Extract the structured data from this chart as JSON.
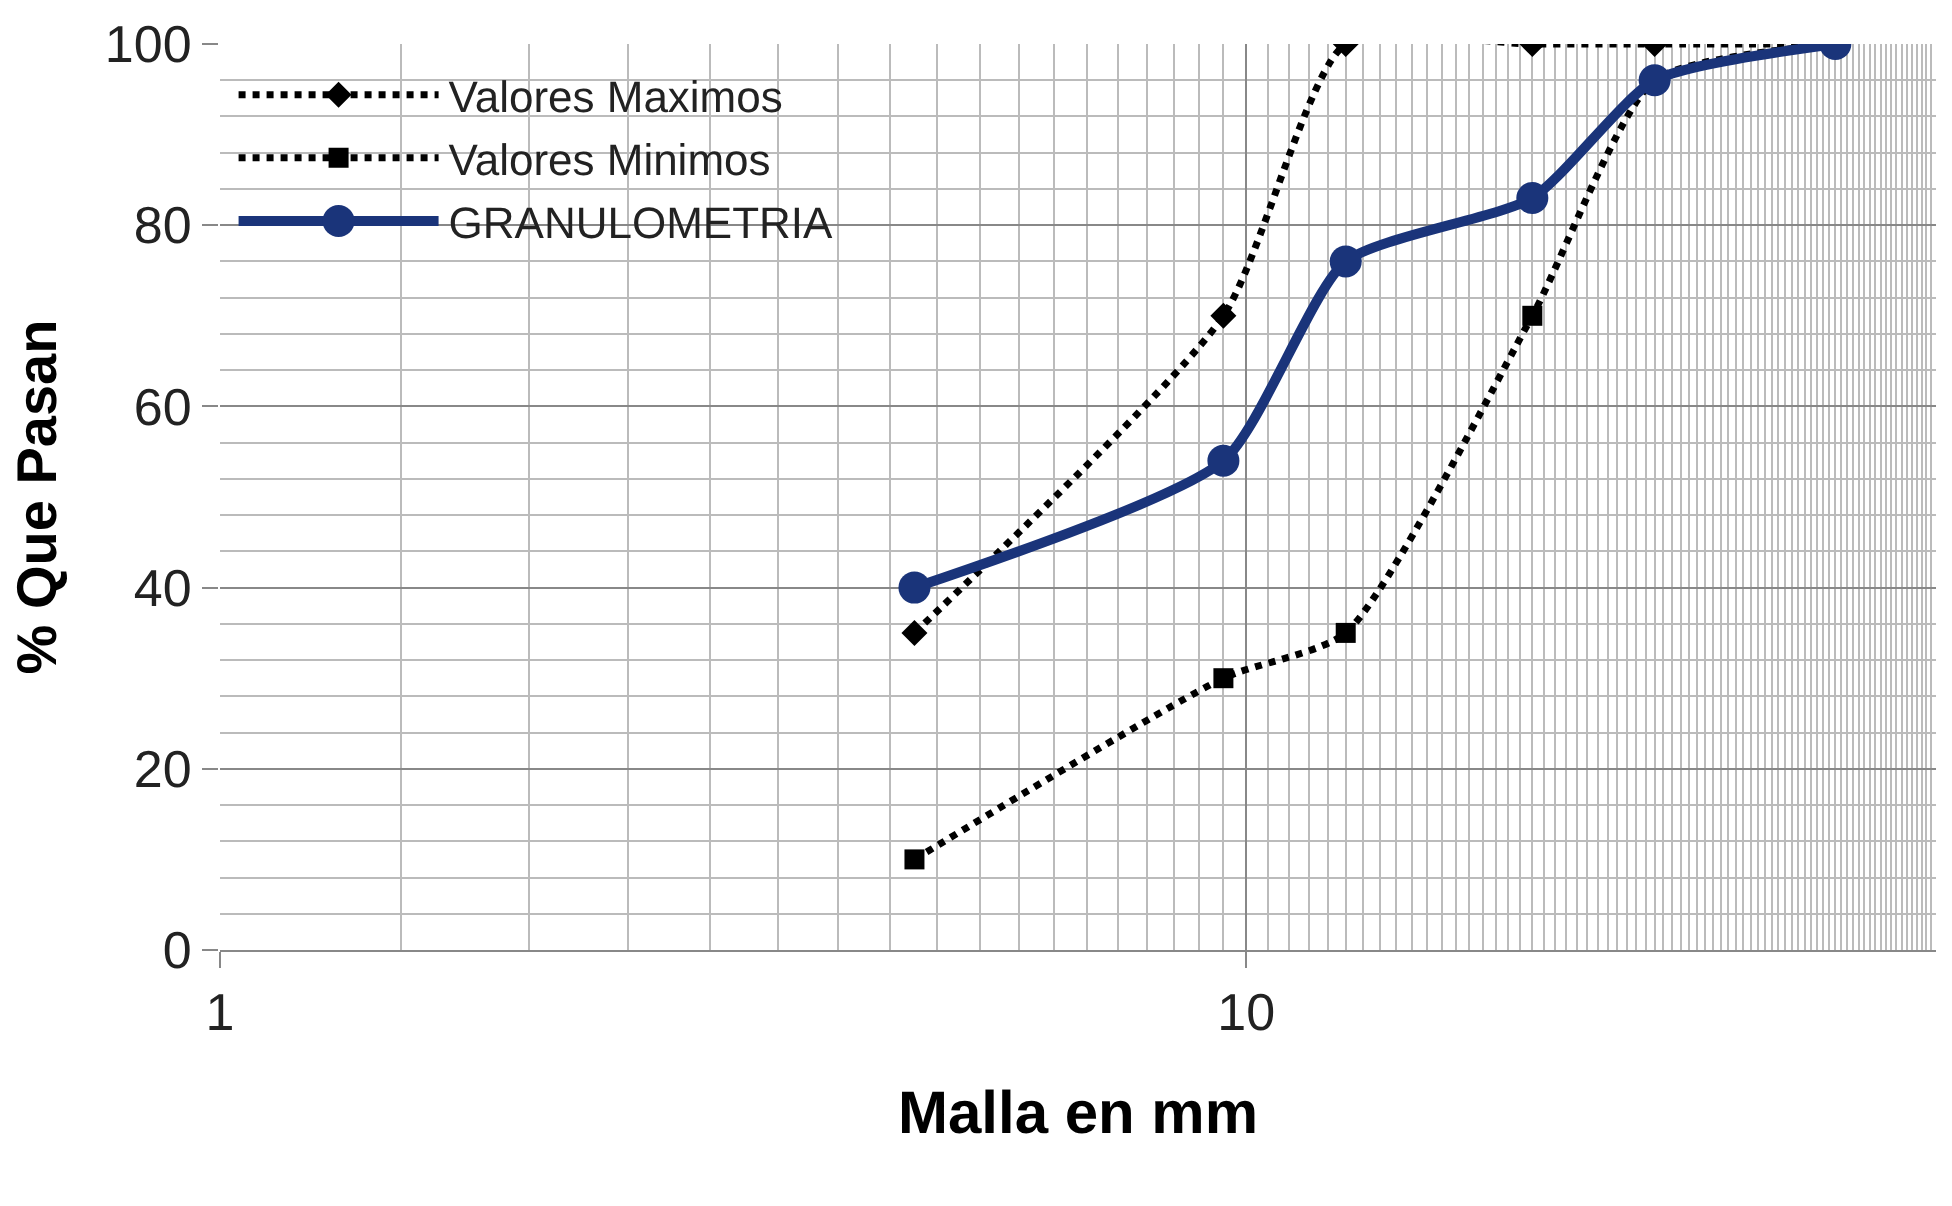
{
  "chart_data": {
    "type": "line",
    "xlabel": "Malla en mm",
    "ylabel": "% Que Pasan",
    "log": "x",
    "x": [
      4.75,
      9.5,
      12.5,
      19,
      25,
      37.5
    ],
    "series": [
      {
        "name": "Valores Maximos",
        "color": "#000000",
        "marker": "diamond",
        "line_style": "dotted",
        "values": [
          35,
          70,
          100,
          100,
          100,
          100
        ]
      },
      {
        "name": "Valores Minimos",
        "color": "#000000",
        "marker": "square",
        "line_style": "dotted",
        "values": [
          10,
          30,
          35,
          70,
          96,
          100
        ]
      },
      {
        "name": "GRANULOMETRIA",
        "color": "#1a347a",
        "marker": "circle",
        "line_style": "solid",
        "values": [
          40,
          54,
          76,
          83,
          96,
          100
        ]
      }
    ],
    "xlim": [
      1,
      47
    ],
    "xticks": [
      1,
      10
    ],
    "ylim": [
      0,
      100
    ],
    "yticks": [
      0,
      20,
      40,
      60,
      80,
      100
    ],
    "grid": true,
    "legend": "top left"
  }
}
